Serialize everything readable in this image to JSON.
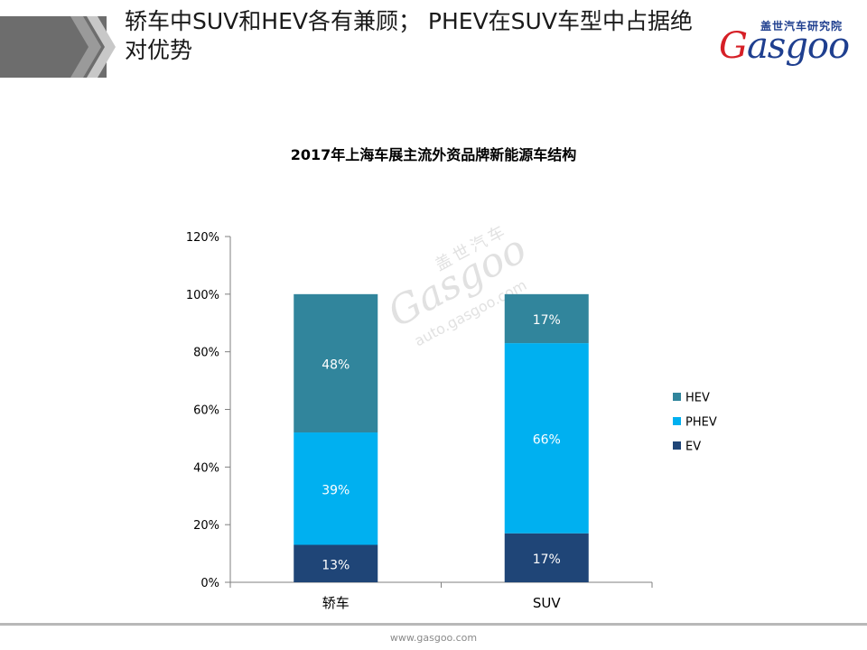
{
  "slide": {
    "title": "轿车中SUV和HEV各有兼顾； PHEV在SUV车型中占据绝对优势"
  },
  "logo": {
    "cn": "盖世汽车研究院",
    "en_first": "G",
    "en_rest": "asgoo"
  },
  "watermark": {
    "cn": "盖世汽车",
    "en": "Gasgoo",
    "url": "auto.gasgoo.com"
  },
  "footer": {
    "url": "www.gasgoo.com"
  },
  "colors": {
    "EV": "#1f4577",
    "PHEV": "#00b0f0",
    "HEV": "#31859c",
    "axis": "#7f7f7f"
  },
  "chart_data": {
    "type": "bar",
    "stacked": true,
    "title": "2017年上海车展主流外资品牌新能源车结构",
    "categories": [
      "轿车",
      "SUV"
    ],
    "series": [
      {
        "name": "EV",
        "values": [
          13,
          17
        ],
        "labels": [
          "13%",
          "17%"
        ]
      },
      {
        "name": "PHEV",
        "values": [
          39,
          66
        ],
        "labels": [
          "39%",
          "66%"
        ]
      },
      {
        "name": "HEV",
        "values": [
          48,
          17
        ],
        "labels": [
          "48%",
          "17%"
        ]
      }
    ],
    "ylim": [
      0,
      120
    ],
    "yticks": [
      "0%",
      "20%",
      "40%",
      "60%",
      "80%",
      "100%",
      "120%"
    ],
    "legend": "right",
    "legend_order": [
      "HEV",
      "PHEV",
      "EV"
    ],
    "grid": false
  }
}
